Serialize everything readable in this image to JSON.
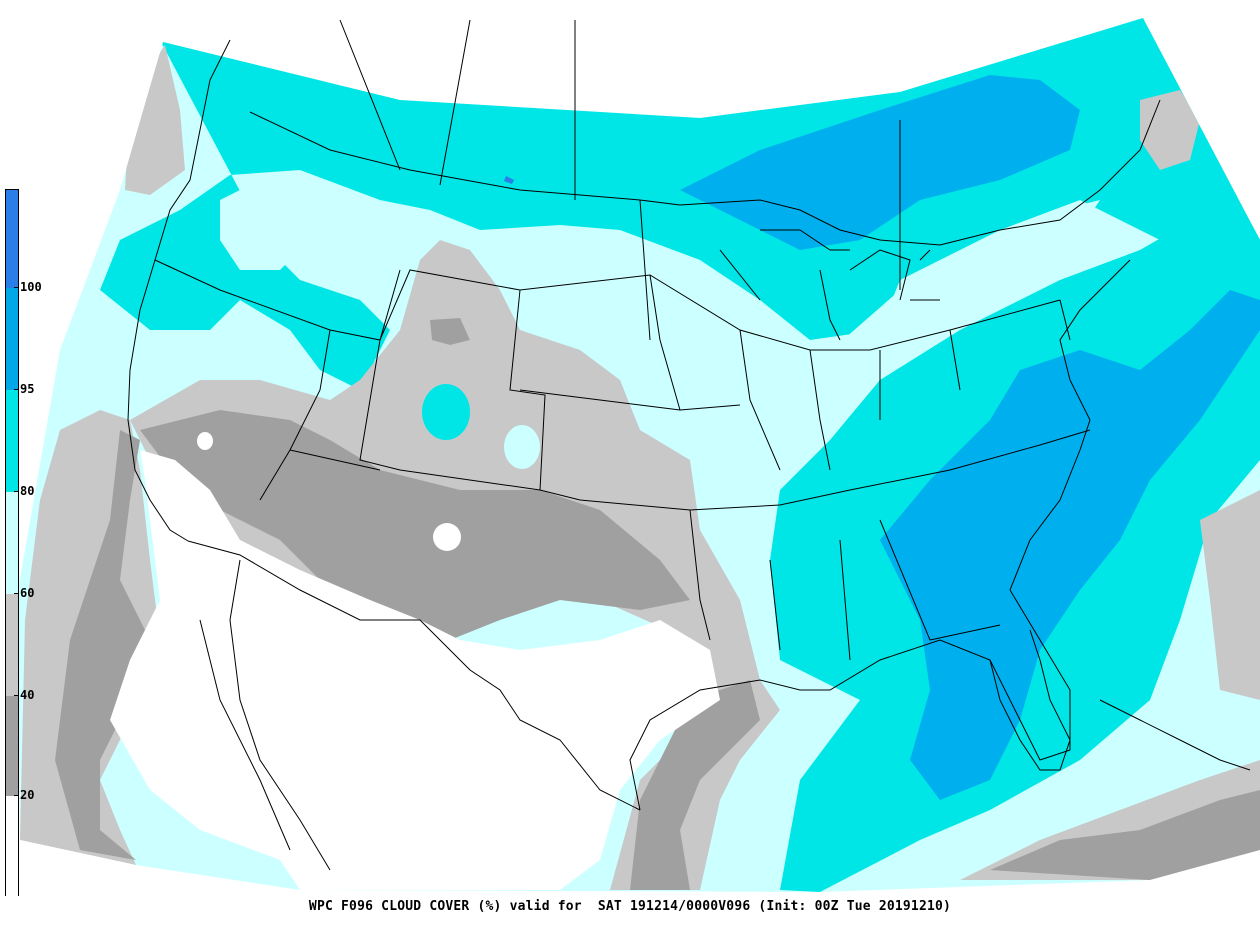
{
  "map": {
    "caption": "WPC F096 CLOUD COVER (%) valid for  SAT 191214/0000V096 (Init: 00Z Tue 20191210)",
    "legend": {
      "ticks": [
        "100",
        "95",
        "80",
        "60",
        "40",
        "20"
      ],
      "bands": [
        {
          "range": "100+",
          "color": "#2a7ee8"
        },
        {
          "range": "95-100",
          "color": "#00a8e8"
        },
        {
          "range": "80-95",
          "color": "#00e6e6"
        },
        {
          "range": "60-80",
          "color": "#ccffff"
        },
        {
          "range": "40-60",
          "color": "#c8c8c8"
        },
        {
          "range": "20-40",
          "color": "#a0a0a0"
        },
        {
          "range": "0-20",
          "color": "#ffffff"
        }
      ]
    },
    "colors": {
      "c100": "#2a7ee8",
      "c95": "#00b0ee",
      "c80": "#00e6e6",
      "c60": "#ccffff",
      "c40": "#c8c8c8",
      "c20": "#a0a0a0",
      "c0": "#ffffff",
      "boundary": "#000000"
    }
  }
}
